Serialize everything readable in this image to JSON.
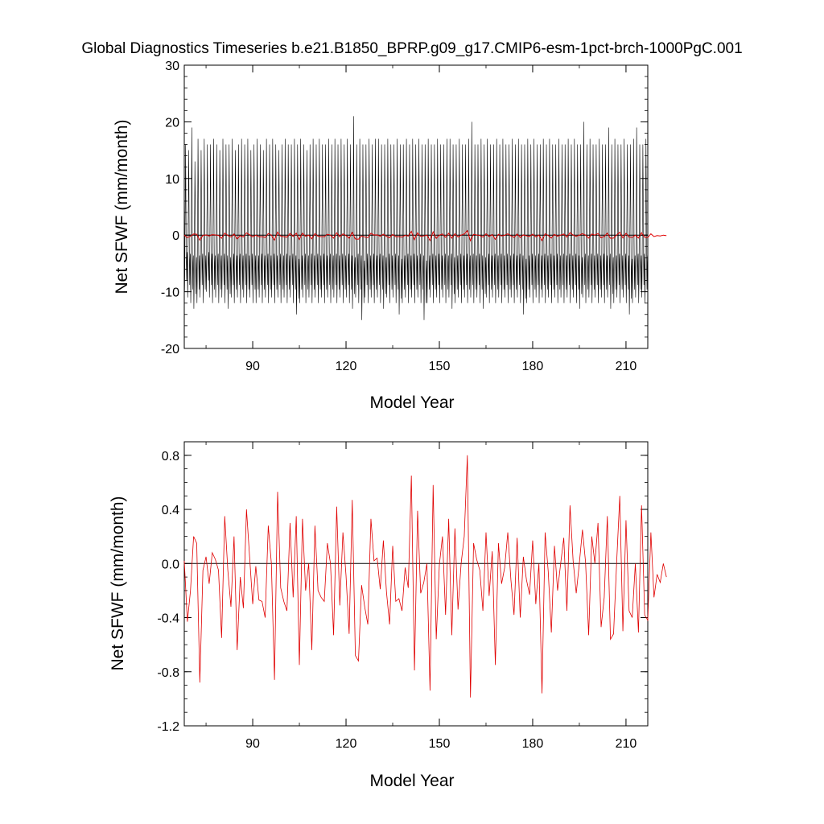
{
  "title": "Global Diagnostics Timeseries b.e21.B1850_BPRP.g09_g17.CMIP6-esm-1pct-brch-1000PgC.001",
  "colors": {
    "monthly": "#000000",
    "annual": "#e00000",
    "zero": "#000000",
    "axis": "#000000"
  },
  "chart_data": [
    {
      "type": "line",
      "title": "Global Diagnostics Timeseries b.e21.B1850_BPRP.g09_g17.CMIP6-esm-1pct-brch-1000PgC.001",
      "xlabel": "Model Year",
      "ylabel": "Net SFWF (mm/month)",
      "xlim": [
        68,
        217
      ],
      "ylim": [
        -20,
        30
      ],
      "xticks": [
        90,
        120,
        150,
        180,
        210
      ],
      "xtick_labels": [
        "90",
        "120",
        "150",
        "180",
        "210"
      ],
      "yticks": [
        -20,
        -10,
        0,
        10,
        20,
        30
      ],
      "ytick_labels": [
        "-20",
        "-10",
        "0",
        "10",
        "20",
        "30"
      ],
      "grid": false,
      "reference_line": 0,
      "series": [
        {
          "color": "#000000",
          "description_values": "monthly cycle",
          "x_start": 68,
          "x_end": 217,
          "annual_peaks": [
            16,
            15,
            19,
            13,
            17,
            15,
            17,
            16,
            16,
            17,
            16,
            15,
            17,
            16,
            16,
            17,
            15,
            16,
            17,
            16,
            17,
            15,
            16,
            17,
            16,
            15,
            17,
            16,
            17,
            16,
            15,
            16,
            17,
            16,
            16,
            17,
            16,
            17,
            16,
            15,
            16,
            17,
            16,
            17,
            16,
            16,
            17,
            16,
            17,
            16,
            17,
            16,
            17,
            16,
            21,
            16,
            17,
            16,
            16,
            17,
            16,
            17,
            17,
            16,
            16,
            17,
            16,
            16,
            17,
            16,
            16,
            17,
            16,
            17,
            16,
            17,
            16,
            16,
            17,
            16,
            16,
            17,
            16,
            16,
            17,
            17,
            16,
            16,
            17,
            16,
            16,
            17,
            20,
            16,
            16,
            17,
            16,
            17,
            16,
            16,
            17,
            16,
            17,
            16,
            16,
            17,
            16,
            17,
            16,
            16,
            17,
            16,
            17,
            16,
            16,
            17,
            16,
            17,
            16,
            16,
            17,
            16,
            16,
            17,
            16,
            17,
            16,
            16,
            20,
            16,
            17,
            16,
            16,
            17,
            16,
            16,
            19,
            16,
            17,
            16,
            16,
            17,
            16,
            16,
            17,
            19,
            16,
            16,
            17,
            16
          ],
          "annual_troughs": [
            -10,
            -11,
            -12,
            -13,
            -12,
            -11,
            -12,
            -10,
            -11,
            -12,
            -11,
            -12,
            -11,
            -12,
            -13,
            -11,
            -12,
            -11,
            -12,
            -11,
            -12,
            -11,
            -12,
            -12,
            -11,
            -12,
            -11,
            -12,
            -11,
            -12,
            -11,
            -12,
            -11,
            -12,
            -11,
            -12,
            -14,
            -12,
            -11,
            -12,
            -11,
            -12,
            -11,
            -12,
            -11,
            -12,
            -11,
            -12,
            -11,
            -12,
            -11,
            -12,
            -11,
            -12,
            -13,
            -11,
            -12,
            -15,
            -11,
            -12,
            -11,
            -12,
            -11,
            -12,
            -13,
            -11,
            -12,
            -11,
            -12,
            -14,
            -12,
            -11,
            -12,
            -11,
            -12,
            -11,
            -12,
            -15,
            -12,
            -11,
            -12,
            -11,
            -12,
            -11,
            -12,
            -11,
            -13,
            -12,
            -11,
            -12,
            -11,
            -12,
            -11,
            -12,
            -11,
            -12,
            -13,
            -11,
            -12,
            -11,
            -12,
            -11,
            -12,
            -11,
            -12,
            -11,
            -12,
            -11,
            -12,
            -14,
            -12,
            -11,
            -12,
            -11,
            -12,
            -11,
            -12,
            -11,
            -12,
            -11,
            -12,
            -11,
            -12,
            -11,
            -12,
            -11,
            -12,
            -13,
            -11,
            -12,
            -11,
            -12,
            -11,
            -12,
            -11,
            -12,
            -11,
            -13,
            -12,
            -11,
            -12,
            -11,
            -12,
            -14,
            -12,
            -11,
            -12,
            -11,
            -12,
            -12
          ]
        },
        {
          "color": "#e00000",
          "description_values": "annual mean",
          "same_as": "panel2"
        }
      ]
    },
    {
      "type": "line",
      "xlabel": "Model Year",
      "ylabel": "Net SFWF (mm/month)",
      "xlim": [
        68,
        217
      ],
      "ylim": [
        -1.2,
        0.9
      ],
      "xticks": [
        90,
        120,
        150,
        180,
        210
      ],
      "xtick_labels": [
        "90",
        "120",
        "150",
        "180",
        "210"
      ],
      "yticks": [
        -1.2,
        -0.8,
        -0.4,
        0.0,
        0.4,
        0.8
      ],
      "ytick_labels": [
        "-1.2",
        "-0.8",
        "-0.4",
        "0.0",
        "0.4",
        "0.8"
      ],
      "grid": false,
      "reference_line": 0,
      "series": [
        {
          "color": "#e00000",
          "x_start": 68,
          "x_step": 1,
          "values": [
            0.02,
            -0.43,
            -0.2,
            0.2,
            0.15,
            -0.88,
            -0.05,
            0.05,
            -0.15,
            0.08,
            0.03,
            -0.05,
            -0.55,
            0.35,
            -0.05,
            -0.32,
            0.2,
            -0.64,
            -0.1,
            -0.33,
            0.4,
            0.05,
            -0.3,
            -0.02,
            -0.27,
            -0.28,
            -0.4,
            0.28,
            0.0,
            -0.86,
            0.53,
            -0.18,
            -0.28,
            -0.35,
            0.3,
            -0.25,
            0.35,
            -0.75,
            0.33,
            -0.2,
            0.0,
            -0.64,
            0.28,
            -0.2,
            -0.25,
            -0.28,
            0.15,
            0.0,
            -0.53,
            0.42,
            -0.31,
            0.23,
            -0.09,
            -0.52,
            0.47,
            -0.68,
            -0.72,
            -0.16,
            -0.32,
            -0.45,
            0.33,
            0.02,
            0.04,
            -0.19,
            0.17,
            -0.21,
            -0.45,
            0.13,
            -0.28,
            -0.26,
            -0.35,
            -0.03,
            -0.18,
            0.65,
            -0.79,
            0.39,
            -0.22,
            -0.14,
            0.0,
            -0.94,
            0.58,
            -0.56,
            -0.01,
            0.2,
            -0.38,
            0.33,
            -0.53,
            0.26,
            -0.34,
            0.0,
            0.2,
            0.8,
            -0.99,
            0.15,
            0.03,
            -0.05,
            -0.35,
            0.23,
            -0.24,
            0.09,
            -0.75,
            0.15,
            -0.15,
            -0.03,
            0.23,
            -0.12,
            -0.38,
            0.19,
            -0.4,
            0.05,
            -0.12,
            -0.23,
            0.17,
            -0.3,
            0.0,
            -0.96,
            0.23,
            -0.06,
            -0.51,
            0.13,
            -0.2,
            0.0,
            0.19,
            -0.35,
            0.43,
            0.02,
            -0.22,
            0.0,
            0.25,
            0.01,
            -0.53,
            0.2,
            0.0,
            0.3,
            -0.47,
            -0.25,
            0.35,
            -0.56,
            -0.52,
            0.01,
            0.5,
            -0.5,
            0.32,
            -0.35,
            -0.4,
            0.0,
            -0.51,
            0.43,
            -0.38,
            -0.42,
            0.23,
            -0.25,
            -0.08,
            -0.14,
            0.0,
            -0.1
          ]
        }
      ]
    }
  ]
}
